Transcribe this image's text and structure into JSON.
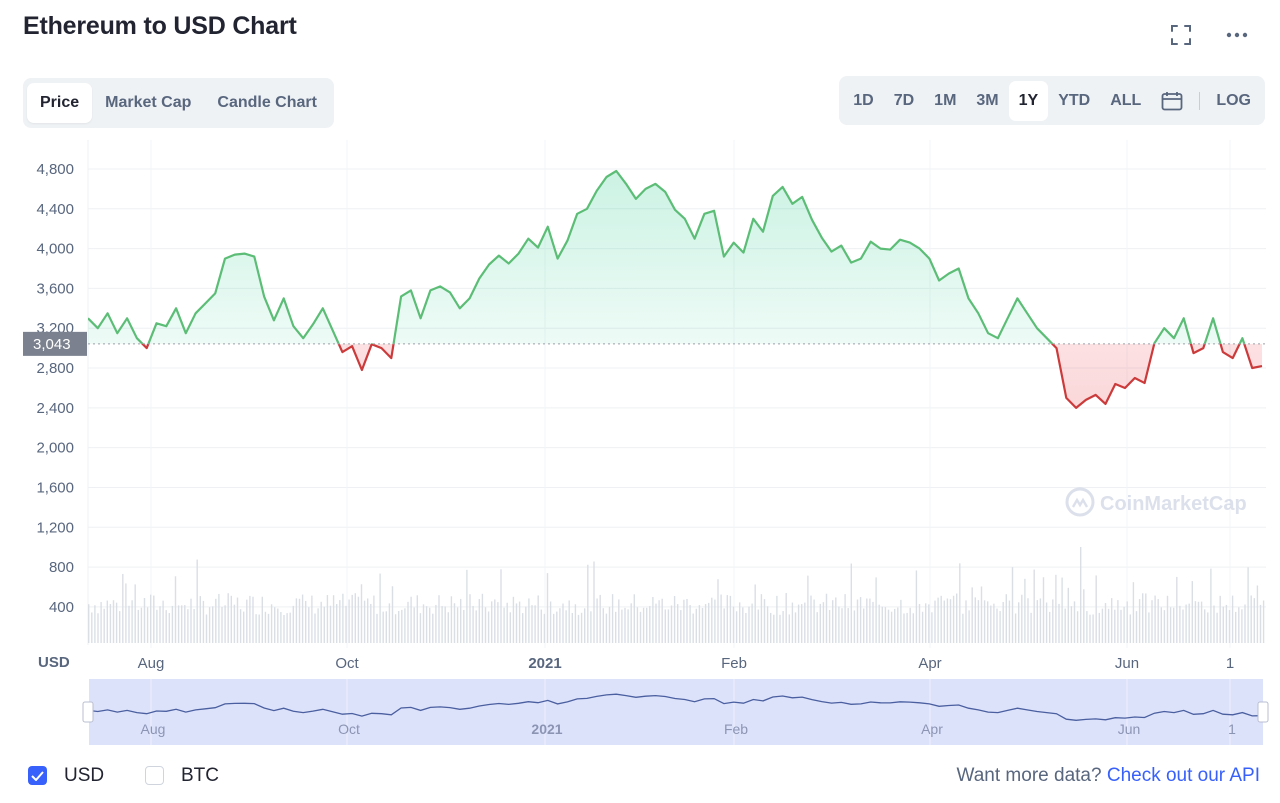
{
  "title": "Ethereum to USD Chart",
  "icons": {
    "fullscreen": "fullscreen-icon",
    "more": "more-dots-icon",
    "calendar": "calendar-icon",
    "checkmark": "checkmark-icon"
  },
  "tabs": [
    {
      "label": "Price",
      "active": true
    },
    {
      "label": "Market Cap",
      "active": false
    },
    {
      "label": "Candle Chart",
      "active": false
    }
  ],
  "ranges": [
    {
      "label": "1D",
      "active": false
    },
    {
      "label": "7D",
      "active": false
    },
    {
      "label": "1M",
      "active": false
    },
    {
      "label": "3M",
      "active": false
    },
    {
      "label": "1Y",
      "active": true
    },
    {
      "label": "YTD",
      "active": false
    },
    {
      "label": "ALL",
      "active": false
    }
  ],
  "log_label": "LOG",
  "colors": {
    "up": "#16c784",
    "up_line": "#5cbd76",
    "down": "#ea3943",
    "down_line": "#cc3b3b",
    "accent": "#3861fb",
    "navigator_fill": "#dde2fb",
    "navigator_line": "#4a5f9f"
  },
  "chart_data": {
    "type": "line",
    "title": "Ethereum to USD Chart",
    "ylabel": "USD",
    "ylim": [
      200,
      5000
    ],
    "yticks": [
      400,
      800,
      1200,
      1600,
      2000,
      2400,
      2800,
      3200,
      3600,
      4000,
      4400,
      4800
    ],
    "ytick_labels": [
      "400",
      "800",
      "1,200",
      "1,600",
      "2,000",
      "2,400",
      "2,800",
      "3,200",
      "3,600",
      "4,000",
      "4,400",
      "4,800"
    ],
    "xtick_labels": [
      "Aug",
      "Oct",
      "2021",
      "Feb",
      "Apr",
      "Jun",
      "1"
    ],
    "reference_price": 3043,
    "reference_label": "3,043",
    "watermark": "CoinMarketCap",
    "series": [
      {
        "x": [
          0,
          1,
          2,
          3,
          4,
          5,
          6,
          7,
          8,
          9,
          10,
          11,
          12,
          13,
          14,
          15,
          16,
          17,
          18,
          19,
          20,
          21,
          22,
          23,
          24,
          25,
          26,
          27,
          28,
          29,
          30,
          31,
          32,
          33,
          34,
          35,
          36,
          37,
          38,
          39,
          40,
          41,
          42,
          43,
          44,
          45,
          46,
          47,
          48,
          49,
          50,
          51,
          52,
          53,
          54,
          55,
          56,
          57,
          58,
          59,
          60,
          61,
          62,
          63,
          64,
          65,
          66,
          67,
          68,
          69,
          70,
          71,
          72,
          73,
          74,
          75,
          76,
          77,
          78,
          79,
          80,
          81,
          82,
          83,
          84,
          85,
          86,
          87,
          88,
          89,
          90,
          91,
          92,
          93,
          94,
          95,
          96,
          97,
          98,
          99,
          100,
          101,
          102,
          103,
          104,
          105,
          106,
          107,
          108,
          109,
          110,
          111,
          112,
          113,
          114,
          115,
          116,
          117,
          118,
          119,
          120
        ],
        "values": [
          3300,
          3200,
          3350,
          3150,
          3300,
          3100,
          3000,
          3250,
          3220,
          3400,
          3150,
          3350,
          3450,
          3550,
          3900,
          3940,
          3950,
          3920,
          3520,
          3280,
          3500,
          3220,
          3100,
          3240,
          3400,
          3180,
          2960,
          3020,
          2780,
          3040,
          3000,
          2900,
          3520,
          3580,
          3300,
          3580,
          3620,
          3560,
          3400,
          3500,
          3700,
          3840,
          3930,
          3850,
          3950,
          4100,
          4010,
          4220,
          3900,
          4080,
          4350,
          4400,
          4580,
          4720,
          4780,
          4650,
          4500,
          4600,
          4650,
          4570,
          4390,
          4300,
          4100,
          4350,
          4380,
          3920,
          4060,
          3960,
          4300,
          4170,
          4530,
          4620,
          4450,
          4520,
          4290,
          4110,
          3970,
          4030,
          3860,
          3900,
          4070,
          4000,
          3990,
          4090,
          4060,
          4000,
          3900,
          3680,
          3750,
          3800,
          3500,
          3350,
          3150,
          3100,
          3300,
          3500,
          3350,
          3200,
          3100,
          3000,
          2500,
          2400,
          2480,
          2530,
          2440,
          2640,
          2600,
          2700,
          2650,
          3050,
          3200,
          3100,
          3300,
          2950,
          3000,
          3300,
          2960,
          2900,
          3100,
          2800,
          2820
        ]
      }
    ]
  },
  "navigator": {
    "labels": [
      "Aug",
      "Oct",
      "2021",
      "Feb",
      "Apr",
      "Jun",
      "1"
    ]
  },
  "footer": {
    "usd_label": "USD",
    "usd_checked": true,
    "btc_label": "BTC",
    "btc_checked": false,
    "more_text": "Want more data?",
    "link_text": "Check out our API"
  }
}
